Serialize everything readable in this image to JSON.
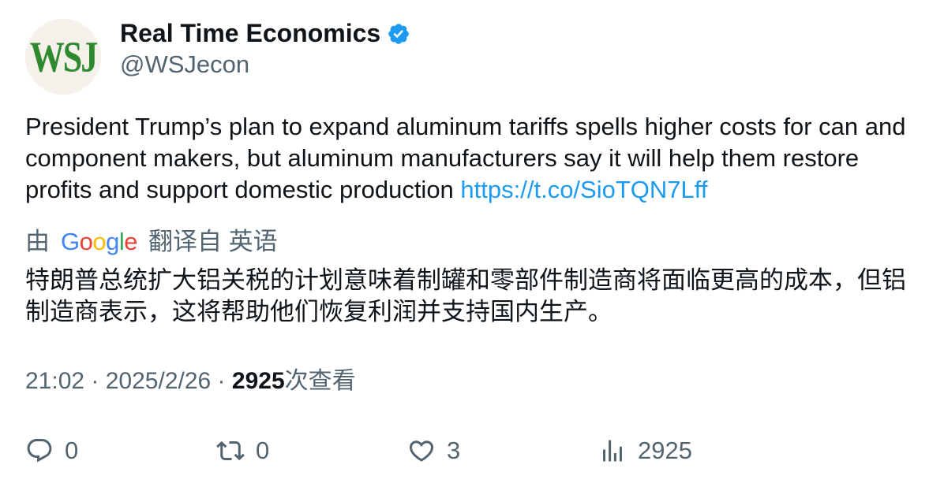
{
  "author": {
    "avatar_text": "WSJ",
    "name": "Real Time Economics",
    "handle": "@WSJecon",
    "verified_color": "#1d9bf0"
  },
  "tweet": {
    "text": "President Trump’s plan to expand aluminum tariffs spells higher costs for can and component makers, but aluminum manufacturers say it will help them restore profits and support domestic production ",
    "link": "https://t.co/SioTQN7Lff"
  },
  "translation": {
    "by_prefix": "由",
    "provider": "Google",
    "from_label": "翻译自 英语",
    "text": "特朗普总统扩大铝关税的计划意味着制罐和零部件制造商将面临更高的成本，但铝制造商表示，这将帮助他们恢复利润并支持国内生产。"
  },
  "meta": {
    "time": "21:02",
    "separator": " · ",
    "date": "2025/2/26",
    "views_count": "2925",
    "views_label": "次查看"
  },
  "actions": {
    "reply_count": "0",
    "retweet_count": "0",
    "like_count": "3",
    "views_count": "2925"
  },
  "colors": {
    "text_primary": "#0f1419",
    "text_secondary": "#536471",
    "link": "#1d9bf0",
    "wsj_green": "#2f8a2f"
  }
}
